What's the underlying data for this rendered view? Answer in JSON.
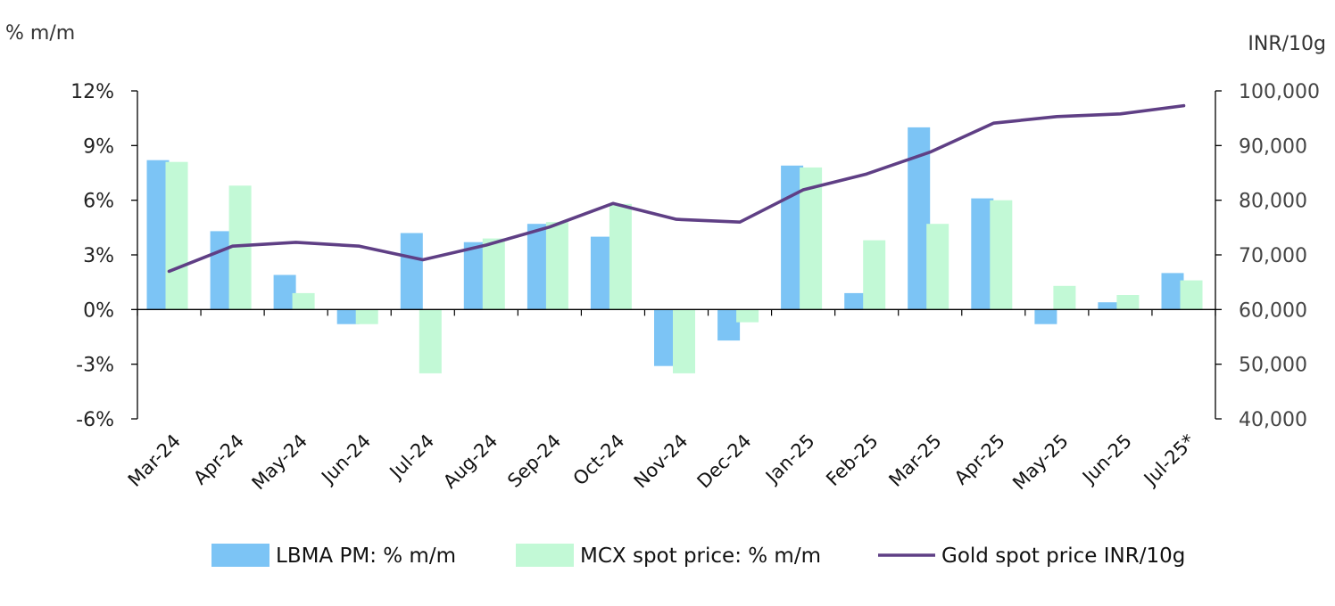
{
  "chart_data": {
    "type": "bar",
    "categories": [
      "Mar-24",
      "Apr-24",
      "May-24",
      "Jun-24",
      "Jul-24",
      "Aug-24",
      "Sep-24",
      "Oct-24",
      "Nov-24",
      "Dec-24",
      "Jan-25",
      "Feb-25",
      "Mar-25",
      "Apr-25",
      "May-25",
      "Jun-25",
      "Jul-25*"
    ],
    "left_axis": {
      "title": "% m/m",
      "ylim": [
        -6,
        12
      ],
      "ticks": [
        12,
        9,
        6,
        3,
        0,
        -3,
        -6
      ],
      "tick_labels": [
        "12%",
        "9%",
        "6%",
        "3%",
        "0%",
        "-3%",
        "-6%"
      ]
    },
    "right_axis": {
      "title": "INR/10g",
      "ylim": [
        40000,
        100000
      ],
      "ticks": [
        100000,
        90000,
        80000,
        70000,
        60000,
        50000,
        40000
      ],
      "tick_labels": [
        "100,000",
        "90,000",
        "80,000",
        "70,000",
        "60,000",
        "50,000",
        "40,000"
      ]
    },
    "series": [
      {
        "name": "LBMA PM: % m/m",
        "type": "bar",
        "axis": "left",
        "color": "#7cc4f5",
        "values": [
          8.2,
          4.3,
          1.9,
          -0.8,
          4.2,
          3.7,
          4.7,
          4.0,
          -3.1,
          -1.7,
          7.9,
          0.9,
          10.0,
          6.1,
          -0.8,
          0.4,
          2.0
        ]
      },
      {
        "name": "MCX spot price: % m/m",
        "type": "bar",
        "axis": "left",
        "color": "#c2f9d6",
        "values": [
          8.1,
          6.8,
          0.9,
          -0.8,
          -3.5,
          3.9,
          4.8,
          5.8,
          -3.5,
          -0.7,
          7.8,
          3.8,
          4.7,
          6.0,
          1.3,
          0.8,
          1.6
        ]
      },
      {
        "name": "Gold spot price INR/10g",
        "type": "line",
        "axis": "right",
        "color": "#5f3f85",
        "values": [
          67000,
          71600,
          72300,
          71600,
          69100,
          71800,
          75100,
          79400,
          76500,
          76000,
          81900,
          84800,
          88800,
          94100,
          95300,
          95800,
          97300
        ]
      }
    ],
    "legend": {
      "position": "bottom",
      "items": [
        "LBMA PM: % m/m",
        "MCX spot price: % m/m",
        "Gold spot price INR/10g"
      ]
    },
    "grid": false
  }
}
